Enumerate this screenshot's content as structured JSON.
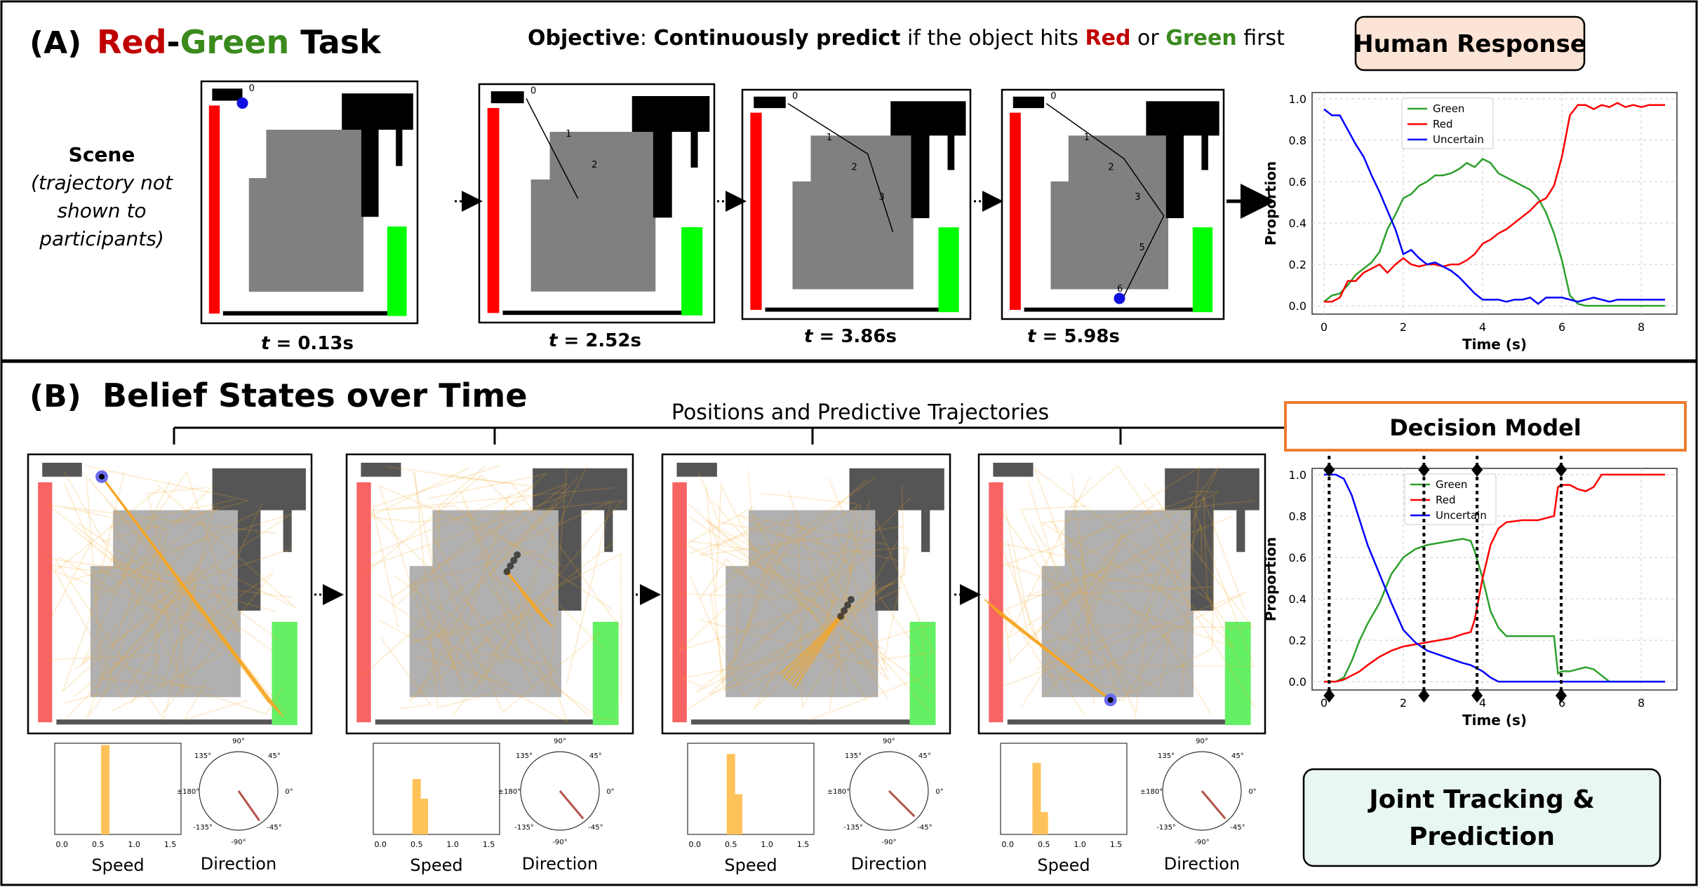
{
  "panel_a": {
    "label": "(A)",
    "title_red": "Red",
    "title_dash": "-",
    "title_green": "Green",
    "title_rest": " Task",
    "objective": {
      "bold1": "Objective",
      "colon": ": ",
      "bold2": "Continuously predict",
      "mid": " if the object hits ",
      "red": "Red",
      "or": " or ",
      "green": "Green",
      "end": " first"
    },
    "human_response": "Human Response",
    "scene_label": [
      "Scene",
      "(trajectory not",
      "shown to",
      "participants)"
    ],
    "time_prefix": "t",
    "time_labels": [
      " = 0.13s",
      " = 2.52s",
      " = 3.86s",
      " = 5.98s"
    ],
    "waypoints": [
      "0",
      "1",
      "2",
      "3",
      "4",
      "5",
      "6"
    ]
  },
  "panel_b": {
    "label": "(B)",
    "title": "Belief States over Time",
    "positions_label": "Positions and Predictive Trajectories",
    "decision_model": "Decision Model",
    "joint_line1": "Joint Tracking &",
    "joint_line2": "Prediction",
    "speed_label": "Speed",
    "direction_label": "Direction",
    "speed_ticks": [
      "0.0",
      "0.5",
      "1.0",
      "1.5"
    ],
    "direction_ticks": [
      "90°",
      "45°",
      "0°",
      "-45°",
      "-90°",
      "-135°",
      "±180°",
      "135°"
    ]
  },
  "colors": {
    "red": "#ff0000",
    "green": "#00ff00",
    "blue": "#0000ff",
    "orange": "#f5a623",
    "title_red": "#c00000",
    "title_green": "#3a8a1e"
  },
  "chart_data": [
    {
      "type": "line",
      "title": "",
      "xlabel": "Time (s)",
      "ylabel": "Proportion",
      "xlim": [
        -0.3,
        8.9
      ],
      "ylim": [
        -0.04,
        1.03
      ],
      "xticks": [
        0,
        2,
        4,
        6,
        8
      ],
      "yticks": [
        0.0,
        0.2,
        0.4,
        0.6,
        0.8,
        1.0
      ],
      "grid": true,
      "legend": "top-left",
      "series": [
        {
          "name": "Green",
          "color": "#2ca02c",
          "x": [
            0,
            0.2,
            0.4,
            0.6,
            0.8,
            1.0,
            1.2,
            1.4,
            1.6,
            1.8,
            2.0,
            2.2,
            2.4,
            2.6,
            2.8,
            3.0,
            3.2,
            3.4,
            3.6,
            3.8,
            4.0,
            4.2,
            4.4,
            4.6,
            4.8,
            5.0,
            5.2,
            5.4,
            5.6,
            5.8,
            6.0,
            6.2,
            6.4,
            6.6,
            6.8,
            7.0,
            7.2,
            7.4,
            7.6,
            7.8,
            8.0,
            8.2,
            8.4,
            8.6
          ],
          "y": [
            0.02,
            0.05,
            0.06,
            0.1,
            0.15,
            0.18,
            0.21,
            0.26,
            0.37,
            0.44,
            0.52,
            0.54,
            0.58,
            0.6,
            0.63,
            0.63,
            0.64,
            0.66,
            0.69,
            0.67,
            0.71,
            0.69,
            0.64,
            0.62,
            0.6,
            0.58,
            0.56,
            0.52,
            0.45,
            0.35,
            0.22,
            0.05,
            0.01,
            0.0,
            0.0,
            0.0,
            0.0,
            0.0,
            0.0,
            0.0,
            0.0,
            0.0,
            0.0,
            0.0
          ]
        },
        {
          "name": "Red",
          "color": "#ff0000",
          "x": [
            0,
            0.2,
            0.4,
            0.6,
            0.8,
            1.0,
            1.2,
            1.4,
            1.6,
            1.8,
            2.0,
            2.2,
            2.4,
            2.6,
            2.8,
            3.0,
            3.2,
            3.4,
            3.6,
            3.8,
            4.0,
            4.2,
            4.4,
            4.6,
            4.8,
            5.0,
            5.2,
            5.4,
            5.6,
            5.8,
            6.0,
            6.2,
            6.4,
            6.6,
            6.8,
            7.0,
            7.2,
            7.4,
            7.6,
            7.8,
            8.0,
            8.2,
            8.4,
            8.6
          ],
          "y": [
            0.02,
            0.02,
            0.04,
            0.12,
            0.12,
            0.16,
            0.18,
            0.2,
            0.16,
            0.2,
            0.23,
            0.2,
            0.19,
            0.2,
            0.2,
            0.19,
            0.2,
            0.2,
            0.22,
            0.25,
            0.3,
            0.32,
            0.35,
            0.37,
            0.4,
            0.43,
            0.46,
            0.5,
            0.52,
            0.58,
            0.72,
            0.92,
            0.97,
            0.97,
            0.95,
            0.97,
            0.96,
            0.98,
            0.96,
            0.97,
            0.96,
            0.97,
            0.97,
            0.97
          ]
        },
        {
          "name": "Uncertain",
          "color": "#0000ff",
          "x": [
            0,
            0.2,
            0.4,
            0.6,
            0.8,
            1.0,
            1.2,
            1.4,
            1.6,
            1.8,
            2.0,
            2.2,
            2.4,
            2.6,
            2.8,
            3.0,
            3.2,
            3.4,
            3.6,
            3.8,
            4.0,
            4.2,
            4.4,
            4.6,
            4.8,
            5.0,
            5.2,
            5.4,
            5.6,
            5.8,
            6.0,
            6.2,
            6.4,
            6.6,
            6.8,
            7.0,
            7.2,
            7.4,
            7.6,
            7.8,
            8.0,
            8.2,
            8.4,
            8.6
          ],
          "y": [
            0.95,
            0.92,
            0.92,
            0.85,
            0.78,
            0.72,
            0.63,
            0.55,
            0.46,
            0.37,
            0.25,
            0.27,
            0.23,
            0.2,
            0.21,
            0.19,
            0.17,
            0.14,
            0.1,
            0.06,
            0.03,
            0.03,
            0.03,
            0.02,
            0.03,
            0.03,
            0.04,
            0.01,
            0.04,
            0.04,
            0.04,
            0.03,
            0.02,
            0.03,
            0.04,
            0.03,
            0.02,
            0.03,
            0.03,
            0.03,
            0.03,
            0.03,
            0.03,
            0.03
          ]
        }
      ]
    },
    {
      "type": "line",
      "title": "",
      "xlabel": "Time (s)",
      "ylabel": "Proportion",
      "xlim": [
        -0.3,
        8.9
      ],
      "ylim": [
        -0.04,
        1.03
      ],
      "xticks": [
        0,
        2,
        4,
        6,
        8
      ],
      "yticks": [
        0.0,
        0.2,
        0.4,
        0.6,
        0.8,
        1.0
      ],
      "grid": true,
      "legend": "top-center",
      "decision_times": [
        0.13,
        2.52,
        3.86,
        5.98
      ],
      "series": [
        {
          "name": "Green",
          "color": "#2ca02c",
          "x": [
            0,
            0.3,
            0.5,
            0.7,
            0.9,
            1.1,
            1.4,
            1.7,
            2.0,
            2.3,
            2.6,
            2.9,
            3.2,
            3.5,
            3.7,
            3.8,
            4.0,
            4.2,
            4.4,
            4.6,
            5.0,
            5.4,
            5.8,
            5.9,
            6.0,
            6.2,
            6.4,
            6.6,
            6.8,
            7.0,
            7.2,
            7.5,
            8.0,
            8.6
          ],
          "y": [
            0.0,
            0.0,
            0.02,
            0.1,
            0.2,
            0.28,
            0.38,
            0.52,
            0.6,
            0.64,
            0.66,
            0.67,
            0.68,
            0.69,
            0.68,
            0.63,
            0.5,
            0.34,
            0.26,
            0.22,
            0.22,
            0.22,
            0.22,
            0.04,
            0.05,
            0.05,
            0.06,
            0.07,
            0.06,
            0.03,
            0.0,
            0.0,
            0.0,
            0.0
          ]
        },
        {
          "name": "Red",
          "color": "#ff0000",
          "x": [
            0,
            0.3,
            0.5,
            0.7,
            0.9,
            1.1,
            1.4,
            1.7,
            2.0,
            2.3,
            2.6,
            2.9,
            3.2,
            3.5,
            3.7,
            3.8,
            4.0,
            4.2,
            4.4,
            4.6,
            5.0,
            5.4,
            5.8,
            5.9,
            6.0,
            6.2,
            6.4,
            6.6,
            6.8,
            7.0,
            7.2,
            7.5,
            8.0,
            8.6
          ],
          "y": [
            0.0,
            0.0,
            0.01,
            0.03,
            0.05,
            0.08,
            0.12,
            0.15,
            0.17,
            0.18,
            0.19,
            0.2,
            0.21,
            0.23,
            0.24,
            0.3,
            0.5,
            0.66,
            0.74,
            0.77,
            0.78,
            0.78,
            0.8,
            0.94,
            0.95,
            0.95,
            0.93,
            0.92,
            0.94,
            1.0,
            1.0,
            1.0,
            1.0,
            1.0
          ]
        },
        {
          "name": "Uncertain",
          "color": "#0000ff",
          "x": [
            0,
            0.3,
            0.5,
            0.7,
            0.9,
            1.1,
            1.4,
            1.7,
            2.0,
            2.3,
            2.6,
            2.9,
            3.2,
            3.5,
            3.7,
            3.8,
            4.0,
            4.2,
            4.4,
            4.6,
            5.0,
            5.4,
            5.8,
            5.9,
            6.0,
            6.2,
            6.4,
            6.6,
            6.8,
            7.0,
            7.2,
            7.5,
            8.0,
            8.6
          ],
          "y": [
            1.0,
            1.0,
            0.98,
            0.9,
            0.78,
            0.66,
            0.52,
            0.38,
            0.25,
            0.19,
            0.15,
            0.13,
            0.11,
            0.09,
            0.08,
            0.07,
            0.05,
            0.02,
            0.0,
            0.0,
            0.0,
            0.0,
            0.0,
            0.0,
            0.0,
            0.0,
            0.0,
            0.0,
            0.0,
            0.0,
            0.0,
            0.0,
            0.0,
            0.0
          ]
        }
      ]
    },
    {
      "type": "bar",
      "title": "",
      "xlabel": "Speed",
      "ylabel": "",
      "xlim": [
        -0.1,
        1.65
      ],
      "xticks": [
        0.0,
        0.5,
        1.0,
        1.5
      ],
      "bars": [
        {
          "categories": [
            0.6
          ],
          "values": [
            1.0
          ]
        },
        {
          "categories": [
            0.5,
            0.6
          ],
          "values": [
            0.62,
            0.4
          ]
        },
        {
          "categories": [
            0.5,
            0.6
          ],
          "values": [
            0.9,
            0.45
          ]
        },
        {
          "categories": [
            0.4,
            0.5
          ],
          "values": [
            0.8,
            0.25
          ]
        }
      ]
    },
    {
      "type": "scatter",
      "title": "",
      "xlabel": "Direction",
      "ylabel": "",
      "directions_deg": [
        -55,
        -50,
        -45,
        -50
      ]
    }
  ]
}
